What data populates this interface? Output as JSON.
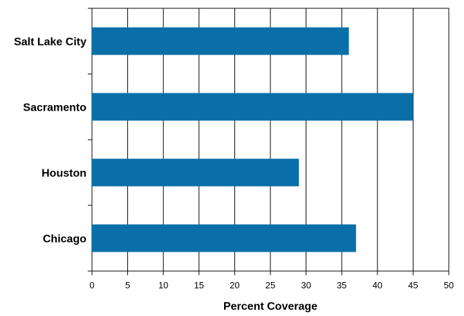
{
  "chart_data": {
    "type": "bar",
    "orientation": "horizontal",
    "categories": [
      "Salt Lake City",
      "Sacramento",
      "Houston",
      "Chicago"
    ],
    "values": [
      36,
      45,
      29,
      37
    ],
    "xlabel": "Percent Coverage",
    "ylabel": "",
    "xlim": [
      0,
      50
    ],
    "xticks": [
      "0",
      "5",
      "10",
      "15",
      "20",
      "25",
      "30",
      "35",
      "40",
      "45",
      "50"
    ],
    "grid": "vertical",
    "bar_color": "#0a6fa8"
  }
}
